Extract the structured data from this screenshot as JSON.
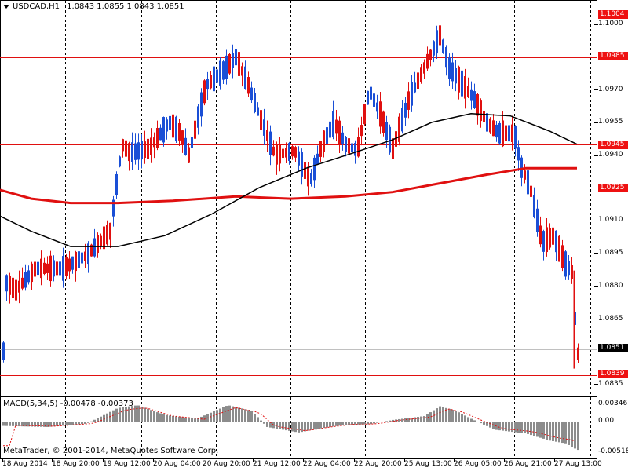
{
  "header": {
    "symbol": "USDCAD,H1",
    "ohlc": "1.0843 1.0855 1.0843 1.0851"
  },
  "macd": {
    "label": "MACD(5,34,5) -0.00478 -0.00373",
    "axis_labels": [
      "0.00346",
      "0.00",
      "-0.00518"
    ]
  },
  "copyright": "MetaTrader, © 2001-2014, MetaQuotes Software Corp.",
  "price_axis": {
    "labels": [
      "1.1000",
      "1.0970",
      "1.0955",
      "1.0940",
      "1.0910",
      "1.0895",
      "1.0880",
      "1.0865",
      "1.0835"
    ],
    "current": "1.0851",
    "hlines": [
      "1.1004",
      "1.0985",
      "1.0945",
      "1.0925",
      "1.0839"
    ]
  },
  "time_axis": [
    "18 Aug 2014",
    "18 Aug 20:00",
    "19 Aug 12:00",
    "20 Aug 04:00",
    "20 Aug 20:00",
    "21 Aug 12:00",
    "22 Aug 04:00",
    "22 Aug 20:00",
    "25 Aug 13:00",
    "26 Aug 05:00",
    "26 Aug 21:00",
    "27 Aug 13:00"
  ],
  "colors": {
    "bull": "#1a4fd6",
    "bear": "#e01010",
    "ma_fast": "#000000",
    "ma_slow": "#e01010",
    "hline": "#e01010",
    "grid": "#000000",
    "hist": "#8c8c8c",
    "signal": "#e01010"
  }
}
